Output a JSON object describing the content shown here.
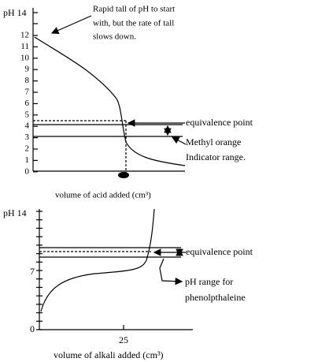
{
  "top": {
    "y_label": "pH 14",
    "y_ticks": [
      "12",
      "11",
      "10",
      "9",
      "8",
      "7",
      "6",
      "5",
      "4",
      "3",
      "2",
      "1",
      "0"
    ],
    "annotation": [
      "Rapid tall of pH to start",
      "with, but the rate of tall",
      "slows down."
    ],
    "equivalence_label": "equivalence point",
    "indicator_label": [
      "Methyl orange",
      "Indicator range."
    ],
    "x_label": "volume of acid added (cm³)"
  },
  "bottom": {
    "y_label": "pH 14",
    "y_ticks": [
      "7",
      "0"
    ],
    "x_tick": "25",
    "equivalence_label": "equivalence point",
    "indicator_label": [
      "pH range for",
      "phenolpthaleine"
    ],
    "x_label": "volume of alkali added (cm³)"
  }
}
